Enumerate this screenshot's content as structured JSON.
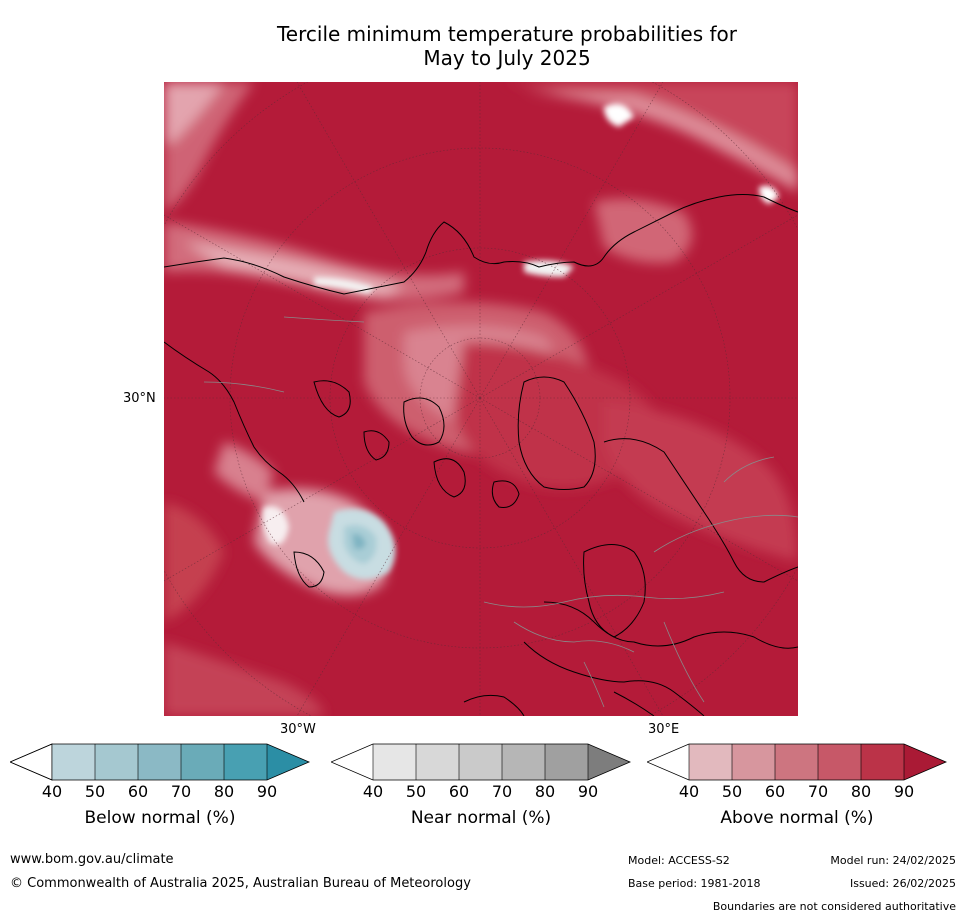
{
  "title_line1": "Tercile minimum temperature probabilities for",
  "title_line2": "May to July 2025",
  "map": {
    "labels": {
      "lat_30n": "30°N",
      "lon_30w": "30°W",
      "lon_30e": "30°E"
    },
    "colors": {
      "dominant": "#b41b39",
      "mid": "#c8445a",
      "light": "#d97a88",
      "pale": "#e8b6bd",
      "blue": "#a9cdd6",
      "blue_dark": "#7fb4c2"
    }
  },
  "colorbars": [
    {
      "title": "Below normal (%)",
      "ticks": [
        "40",
        "50",
        "60",
        "70",
        "80",
        "90"
      ],
      "colors": [
        "#ffffff",
        "#bdd5dc",
        "#a5c8d0",
        "#8bb9c5",
        "#6aabb8",
        "#48a0b2",
        "#2b8ea5"
      ]
    },
    {
      "title": "Near normal (%)",
      "ticks": [
        "40",
        "50",
        "60",
        "70",
        "80",
        "90"
      ],
      "colors": [
        "#ffffff",
        "#e6e6e6",
        "#d8d8d8",
        "#cacaca",
        "#b6b6b6",
        "#a0a0a0",
        "#7d7d7d"
      ]
    },
    {
      "title": "Above normal (%)",
      "ticks": [
        "40",
        "50",
        "60",
        "70",
        "80",
        "90"
      ],
      "colors": [
        "#ffffff",
        "#e2b9be",
        "#d7969e",
        "#cd7580",
        "#c75868",
        "#bb3348",
        "#aa1a35"
      ]
    }
  ],
  "footer": {
    "url": "www.bom.gov.au/climate",
    "copyright": "© Commonwealth of Australia 2025, Australian Bureau of Meteorology",
    "model": "Model: ACCESS-S2",
    "base_period": "Base period: 1981-2018",
    "model_run": "Model run: 24/02/2025",
    "issued": "Issued: 26/02/2025",
    "disclaimer": "Boundaries are not considered authoritative"
  }
}
